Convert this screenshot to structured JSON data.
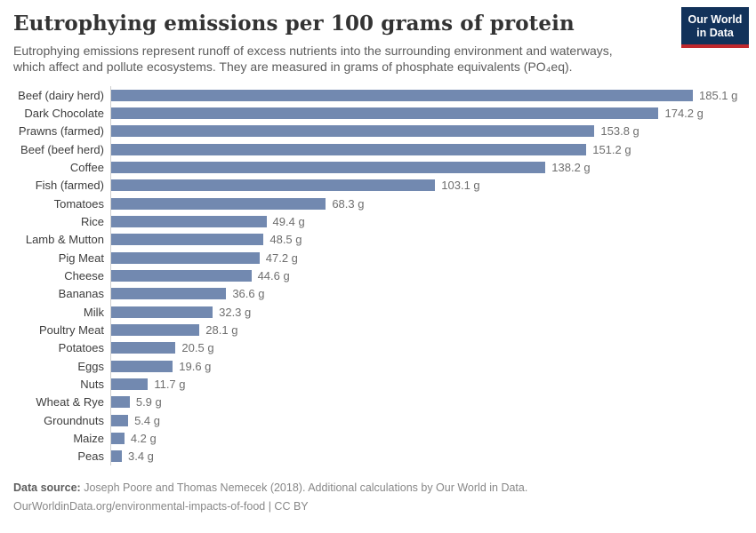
{
  "header": {
    "title": "Eutrophying emissions per 100 grams of protein",
    "subtitle_line1": "Eutrophying emissions represent runoff of excess nutrients into the surrounding environment and waterways,",
    "subtitle_line2": "which affect and pollute ecosystems. They are measured in grams of phosphate equivalents (PO₄eq).",
    "logo": {
      "line1": "Our World",
      "line2": "in Data",
      "bg_color": "#12325a",
      "stripe_color": "#c0282d"
    }
  },
  "chart_data": {
    "type": "bar",
    "orientation": "horizontal",
    "title": "Eutrophying emissions per 100 grams of protein",
    "unit": "g",
    "value_suffix": " g",
    "categories": [
      "Beef (dairy herd)",
      "Dark Chocolate",
      "Prawns (farmed)",
      "Beef (beef herd)",
      "Coffee",
      "Fish (farmed)",
      "Tomatoes",
      "Rice",
      "Lamb & Mutton",
      "Pig Meat",
      "Cheese",
      "Bananas",
      "Milk",
      "Poultry Meat",
      "Potatoes",
      "Eggs",
      "Nuts",
      "Wheat & Rye",
      "Groundnuts",
      "Maize",
      "Peas"
    ],
    "values": [
      185.1,
      174.2,
      153.8,
      151.2,
      138.2,
      103.1,
      68.3,
      49.4,
      48.5,
      47.2,
      44.6,
      36.6,
      32.3,
      28.1,
      20.5,
      19.6,
      11.7,
      5.9,
      5.4,
      4.2,
      3.4
    ],
    "xlim": [
      0,
      185.1
    ],
    "bar_color": "#7289b0",
    "axis_color": "#cfcfcf",
    "grid": false,
    "legend": "none",
    "value_labels": "end-of-bar"
  },
  "footer": {
    "source_label": "Data source:",
    "source_text": " Joseph Poore and Thomas Nemecek (2018). Additional calculations by Our World in Data.",
    "license_line": "OurWorldinData.org/environmental-impacts-of-food | CC BY"
  }
}
